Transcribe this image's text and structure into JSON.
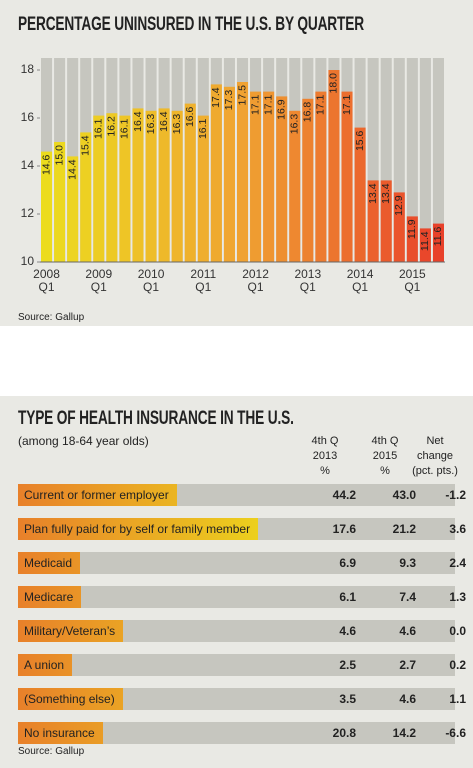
{
  "chart_data": {
    "type": "bar",
    "title": "PERCENTAGE UNINSURED IN THE U.S. BY QUARTER",
    "categories": [
      "2008 Q1",
      null,
      null,
      null,
      "2009 Q1",
      null,
      null,
      null,
      "2010 Q1",
      null,
      null,
      null,
      "2011 Q1",
      null,
      null,
      null,
      "2012 Q1",
      null,
      null,
      null,
      "2013 Q1",
      null,
      null,
      null,
      "2014 Q1",
      null,
      null,
      null,
      "2015 Q1",
      null,
      null
    ],
    "values": [
      14.6,
      15.0,
      14.4,
      15.4,
      16.1,
      16.2,
      16.1,
      16.4,
      16.3,
      16.4,
      16.3,
      16.6,
      16.1,
      17.4,
      17.3,
      17.5,
      17.1,
      17.1,
      16.9,
      16.3,
      16.8,
      17.1,
      18.0,
      17.1,
      15.6,
      13.4,
      13.4,
      12.9,
      11.9,
      11.4,
      11.6
    ],
    "value_labels": [
      "14.6",
      "15.0",
      "14.4",
      "15.4",
      "16.1",
      "16.2",
      "16.1",
      "16.4",
      "16.3",
      "16.4",
      "16.3",
      "16.6",
      "16.1",
      "17.4",
      "17.3",
      "17.5",
      "17.1",
      "17.1",
      "16.9",
      "16.3",
      "16.8",
      "17.1",
      "18.0",
      "17.1",
      "15.6",
      "13.4",
      "13.4",
      "12.9",
      "11.9",
      "11.4",
      "11.6"
    ],
    "ylim": [
      10,
      18.5
    ],
    "yticks": [
      10,
      12,
      14,
      16,
      18
    ],
    "gradient": [
      "#ecdc1e",
      "#f0a232",
      "#e8412a"
    ],
    "background_color": "#c6c6bf",
    "source": "Source: Gallup"
  },
  "table": {
    "title": "TYPE OF HEALTH INSURANCE IN THE U.S.",
    "subtitle": "(among 18-64 year olds)",
    "columns": [
      [
        "4th Q",
        "2013",
        "%"
      ],
      [
        "4th Q",
        "2015",
        "%"
      ],
      [
        "Net",
        "change",
        "(pct. pts.)"
      ]
    ],
    "rows": [
      [
        "Current or former employer",
        "44.2",
        "43.0",
        "-1.2"
      ],
      [
        "Plan fully paid for by self or family member",
        "17.6",
        "21.2",
        "3.6"
      ],
      [
        "Medicaid",
        "6.9",
        "9.3",
        "2.4"
      ],
      [
        "Medicare",
        "6.1",
        "7.4",
        "1.3"
      ],
      [
        "Military/Veteran’s",
        "4.6",
        "4.6",
        "0.0"
      ],
      [
        "A union",
        "2.5",
        "2.7",
        "0.2"
      ],
      [
        "(Something else)",
        "3.5",
        "4.6",
        "1.1"
      ],
      [
        "No insurance",
        "20.8",
        "14.2",
        "-6.6"
      ]
    ],
    "source": "Source: Gallup"
  }
}
